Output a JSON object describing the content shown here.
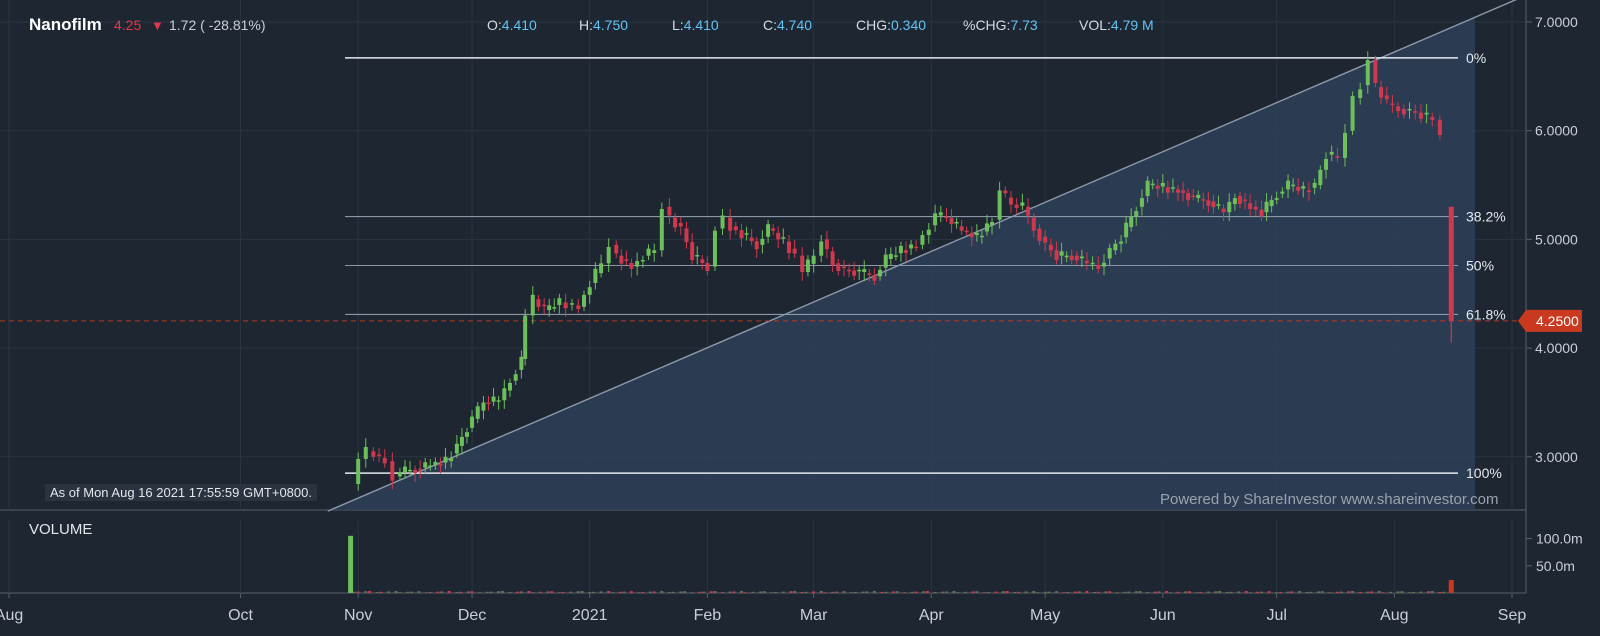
{
  "header": {
    "symbol": "Nanofilm",
    "last": "4.25",
    "change": "1.72 ( -28.81%)",
    "open_label": "O:",
    "open": "4.410",
    "high_label": "H:",
    "high": "4.750",
    "low_label": "L:",
    "low": "4.410",
    "close_label": "C:",
    "close": "4.740",
    "chg_label": "CHG:",
    "chg": "0.340",
    "pchg_label": "%CHG:",
    "pchg": "7.73",
    "vol_label": "VOL:",
    "vol": "4.79 M"
  },
  "as_of": "As of Mon Aug 16 2021 17:55:59 GMT+0800.",
  "powered_by": "Powered by ShareInvestor www.shareinvestor.com",
  "volume_title": "VOLUME",
  "colors": {
    "background": "#1d2631",
    "up": "#6cbf5a",
    "down": "#d0384d",
    "fib_fill": "#2e3f58",
    "price_tag": "#c8391f"
  },
  "chart_data": {
    "type": "candlestick",
    "x_axis": {
      "ticks": [
        {
          "label": "Aug",
          "date": "2020-08-01"
        },
        {
          "label": "Oct",
          "date": "2020-10-01"
        },
        {
          "label": "Nov",
          "date": "2020-11-01"
        },
        {
          "label": "Dec",
          "date": "2020-12-01"
        },
        {
          "label": "2021",
          "date": "2021-01-01"
        },
        {
          "label": "Feb",
          "date": "2021-02-01"
        },
        {
          "label": "Mar",
          "date": "2021-03-01"
        },
        {
          "label": "Apr",
          "date": "2021-04-01"
        },
        {
          "label": "May",
          "date": "2021-05-01"
        },
        {
          "label": "Jun",
          "date": "2021-06-01"
        },
        {
          "label": "Jul",
          "date": "2021-07-01"
        },
        {
          "label": "Aug",
          "date": "2021-08-01"
        },
        {
          "label": "Sep",
          "date": "2021-09-01"
        }
      ]
    },
    "y_axis": {
      "ticks": [
        "3.0000",
        "4.0000",
        "5.0000",
        "6.0000",
        "7.0000"
      ],
      "range": [
        2.5,
        7.2
      ]
    },
    "last_price_tag": "4.2500",
    "last_price": 4.25,
    "fibonacci": [
      {
        "label": "0%",
        "price": 6.67
      },
      {
        "label": "38.2%",
        "price": 5.21
      },
      {
        "label": "50%",
        "price": 4.76
      },
      {
        "label": "61.8%",
        "price": 4.31
      },
      {
        "label": "100%",
        "price": 2.85
      }
    ],
    "trendline": {
      "start": {
        "date": "2020-10-24",
        "price": 2.5
      },
      "end": {
        "date": "2021-09-05",
        "price": 7.25
      }
    },
    "price_points": [
      [
        "2020-10-30",
        2.75
      ],
      [
        "2020-11-01",
        2.98
      ],
      [
        "2020-11-03",
        3.05
      ],
      [
        "2020-11-05",
        3.02
      ],
      [
        "2020-11-08",
        2.96
      ],
      [
        "2020-11-10",
        2.82
      ],
      [
        "2020-11-12",
        2.86
      ],
      [
        "2020-11-16",
        2.89
      ],
      [
        "2020-11-20",
        2.92
      ],
      [
        "2020-11-24",
        2.96
      ],
      [
        "2020-11-27",
        3.1
      ],
      [
        "2020-12-01",
        3.35
      ],
      [
        "2020-12-04",
        3.5
      ],
      [
        "2020-12-08",
        3.52
      ],
      [
        "2020-12-11",
        3.7
      ],
      [
        "2020-12-14",
        3.9
      ],
      [
        "2020-12-15",
        4.3
      ],
      [
        "2020-12-17",
        4.45
      ],
      [
        "2020-12-20",
        4.35
      ],
      [
        "2020-12-24",
        4.42
      ],
      [
        "2020-12-29",
        4.38
      ],
      [
        "2021-01-01",
        4.6
      ],
      [
        "2021-01-04",
        4.78
      ],
      [
        "2021-01-06",
        4.95
      ],
      [
        "2021-01-08",
        4.85
      ],
      [
        "2021-01-12",
        4.75
      ],
      [
        "2021-01-15",
        4.85
      ],
      [
        "2021-01-18",
        4.9
      ],
      [
        "2021-01-20",
        5.3
      ],
      [
        "2021-01-22",
        5.2
      ],
      [
        "2021-01-25",
        5.1
      ],
      [
        "2021-01-28",
        4.85
      ],
      [
        "2021-02-01",
        4.75
      ],
      [
        "2021-02-03",
        5.1
      ],
      [
        "2021-02-05",
        5.2
      ],
      [
        "2021-02-07",
        5.12
      ],
      [
        "2021-02-10",
        5.05
      ],
      [
        "2021-02-14",
        4.95
      ],
      [
        "2021-02-17",
        5.1
      ],
      [
        "2021-02-21",
        4.98
      ],
      [
        "2021-02-24",
        4.85
      ],
      [
        "2021-02-26",
        4.7
      ],
      [
        "2021-03-01",
        4.85
      ],
      [
        "2021-03-03",
        5.0
      ],
      [
        "2021-03-06",
        4.78
      ],
      [
        "2021-03-09",
        4.72
      ],
      [
        "2021-03-13",
        4.7
      ],
      [
        "2021-03-17",
        4.66
      ],
      [
        "2021-03-20",
        4.82
      ],
      [
        "2021-03-24",
        4.9
      ],
      [
        "2021-03-28",
        4.95
      ],
      [
        "2021-04-02",
        5.22
      ],
      [
        "2021-04-05",
        5.2
      ],
      [
        "2021-04-09",
        5.08
      ],
      [
        "2021-04-13",
        5.02
      ],
      [
        "2021-04-17",
        5.18
      ],
      [
        "2021-04-19",
        5.45
      ],
      [
        "2021-04-22",
        5.32
      ],
      [
        "2021-04-25",
        5.3
      ],
      [
        "2021-04-28",
        5.1
      ],
      [
        "2021-05-01",
        4.95
      ],
      [
        "2021-05-04",
        4.85
      ],
      [
        "2021-05-08",
        4.85
      ],
      [
        "2021-05-12",
        4.78
      ],
      [
        "2021-05-15",
        4.75
      ],
      [
        "2021-05-18",
        4.9
      ],
      [
        "2021-05-21",
        5.02
      ],
      [
        "2021-05-25",
        5.3
      ],
      [
        "2021-05-28",
        5.5
      ],
      [
        "2021-06-01",
        5.48
      ],
      [
        "2021-06-05",
        5.45
      ],
      [
        "2021-06-09",
        5.38
      ],
      [
        "2021-06-13",
        5.35
      ],
      [
        "2021-06-17",
        5.25
      ],
      [
        "2021-06-20",
        5.4
      ],
      [
        "2021-06-24",
        5.3
      ],
      [
        "2021-06-27",
        5.25
      ],
      [
        "2021-07-01",
        5.42
      ],
      [
        "2021-07-04",
        5.5
      ],
      [
        "2021-07-08",
        5.45
      ],
      [
        "2021-07-11",
        5.5
      ],
      [
        "2021-07-14",
        5.78
      ],
      [
        "2021-07-17",
        5.75
      ],
      [
        "2021-07-19",
        6.0
      ],
      [
        "2021-07-21",
        6.3
      ],
      [
        "2021-07-23",
        6.42
      ],
      [
        "2021-07-25",
        6.65
      ],
      [
        "2021-07-27",
        6.4
      ],
      [
        "2021-07-30",
        6.25
      ],
      [
        "2021-08-02",
        6.2
      ],
      [
        "2021-08-05",
        6.18
      ],
      [
        "2021-08-08",
        6.15
      ],
      [
        "2021-08-11",
        6.1
      ],
      [
        "2021-08-13",
        5.98
      ]
    ],
    "last_candle": {
      "date": "2021-08-16",
      "open": 5.3,
      "high": 5.3,
      "low": 4.05,
      "close": 4.25
    },
    "volume_axis": {
      "ticks": [
        "50.0m",
        "100.0m"
      ],
      "range": [
        0,
        130
      ]
    },
    "volume_spikes": [
      {
        "date": "2020-10-30",
        "value": 105,
        "color": "up"
      },
      {
        "date": "2021-08-16",
        "value": 24,
        "color": "price_tag"
      }
    ],
    "volume_baseline": 2.5
  }
}
